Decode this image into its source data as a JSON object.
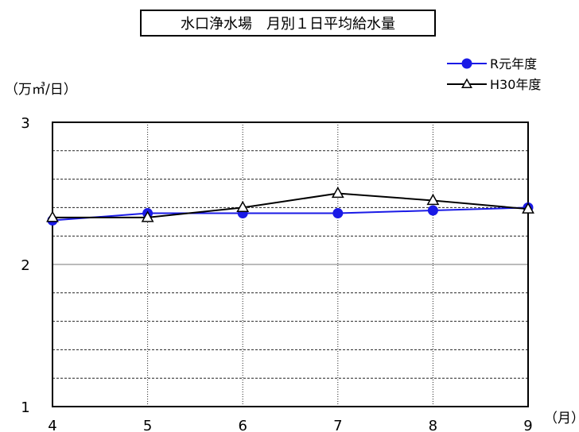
{
  "chart_data": {
    "type": "line",
    "title": "水口浄水場　月別１日平均給水量",
    "ylabel": "（万㎥/日）",
    "xlabel": "（月）",
    "categories": [
      "4",
      "5",
      "6",
      "7",
      "8",
      "9"
    ],
    "ylim": [
      1,
      3
    ],
    "yticks": [
      "1",
      "2",
      "3"
    ],
    "grid": true,
    "legend_position": "top-right",
    "series": [
      {
        "name": "R元年度",
        "values": [
          2.31,
          2.36,
          2.36,
          2.36,
          2.38,
          2.4
        ],
        "color": "#1a1ae6",
        "marker": "circle"
      },
      {
        "name": "H30年度",
        "values": [
          2.33,
          2.33,
          2.4,
          2.5,
          2.45,
          2.39
        ],
        "color": "#000000",
        "marker": "triangle"
      }
    ]
  }
}
